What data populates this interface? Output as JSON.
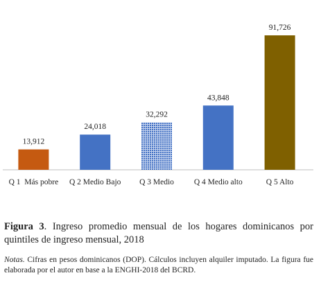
{
  "chart_data": {
    "type": "bar",
    "categories": [
      "Q 1  Más pobre",
      "Q 2 Medio Bajo",
      "Q 3 Medio",
      "Q 4 Medio alto",
      "Q 5 Alto"
    ],
    "values": [
      13912,
      24018,
      32292,
      43848,
      91726
    ],
    "value_labels": [
      "13,912",
      "24,018",
      "32,292",
      "43,848",
      "91,726"
    ],
    "colors": [
      "#c55a11",
      "#4472c4",
      "#4472c4",
      "#4472c4",
      "#7f6000"
    ],
    "patterns": [
      null,
      null,
      "crosshatch",
      null,
      null
    ]
  },
  "figure_label": "Figura 3",
  "caption": ". Ingreso promedio mensual de los hogares dominicanos por quintiles de ingreso mensual, 2018",
  "notes_label": "Notas.",
  "notes_text": " Cifras en pesos dominicanos (DOP). Cálculos incluyen alquiler imputado. La figura fue elaborada por el autor en base a la ENGHI-2018 del BCRD."
}
